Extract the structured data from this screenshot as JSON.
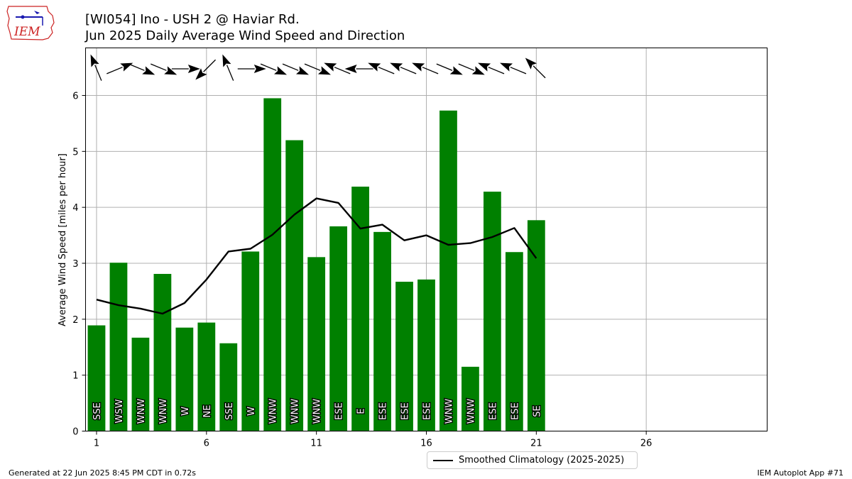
{
  "header": {
    "title_line1": "[WI054] Ino - USH 2 @ Haviar Rd.",
    "title_line2": "Jun 2025 Daily Average Wind Speed and Direction",
    "logo_text": "IEM"
  },
  "footer": {
    "generated": "Generated at 22 Jun 2025 8:45 PM CDT in 0.72s",
    "app": "IEM Autoplot App #71"
  },
  "legend": {
    "label": "Smoothed Climatology (2025-2025)"
  },
  "colors": {
    "bar": "#008000",
    "climatology": "#000000",
    "grid": "#b0b0b0",
    "logo": "#cc2222"
  },
  "chart_data": {
    "type": "bar",
    "ylabel": "Average Wind Speed [miles per hour]",
    "xlim": [
      0.5,
      31.5
    ],
    "ylim": [
      0,
      6.85
    ],
    "xticks": [
      1,
      6,
      11,
      16,
      21,
      26
    ],
    "yticks": [
      0,
      1,
      2,
      3,
      4,
      5,
      6
    ],
    "grid": true,
    "legend_position": "bottom-center",
    "days": [
      1,
      2,
      3,
      4,
      5,
      6,
      7,
      8,
      9,
      10,
      11,
      12,
      13,
      14,
      15,
      16,
      17,
      18,
      19,
      20,
      21
    ],
    "speeds": [
      1.89,
      3.01,
      1.67,
      2.81,
      1.85,
      1.94,
      1.57,
      3.21,
      5.95,
      5.2,
      3.11,
      3.66,
      4.37,
      3.56,
      2.67,
      2.71,
      5.73,
      1.15,
      4.28,
      3.2,
      3.77
    ],
    "directions": [
      "SSE",
      "WSW",
      "WNW",
      "WNW",
      "W",
      "NE",
      "SSE",
      "W",
      "WNW",
      "WNW",
      "WNW",
      "ESE",
      "E",
      "ESE",
      "ESE",
      "ESE",
      "WNW",
      "WNW",
      "ESE",
      "ESE",
      "SE"
    ],
    "climatology": {
      "name": "Smoothed Climatology (2025-2025)",
      "values": [
        2.35,
        2.25,
        2.19,
        2.1,
        2.29,
        2.71,
        3.21,
        3.26,
        3.51,
        3.87,
        4.16,
        4.08,
        3.62,
        3.69,
        3.41,
        3.5,
        3.33,
        3.36,
        3.47,
        3.63,
        3.09
      ]
    }
  }
}
